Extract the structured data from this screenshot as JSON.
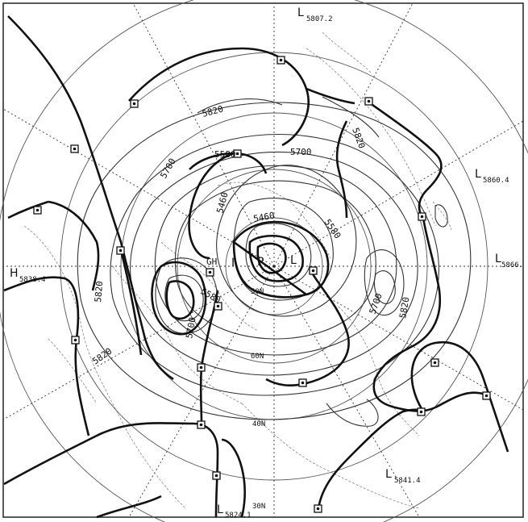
{
  "contour_labels": [
    "5820",
    "5700",
    "5580",
    "5460",
    "5580",
    "5700",
    "5820",
    "5700",
    "5820",
    "5820",
    "5700",
    "5580",
    "5460",
    "5820"
  ],
  "latitude_labels": [
    "60N",
    "50N",
    "40N",
    "30N"
  ],
  "pressure_centers": [
    {
      "letter": "L",
      "value": "5807.2"
    },
    {
      "letter": "L",
      "value": "5860.4"
    },
    {
      "letter": "L",
      "value": "5866."
    },
    {
      "letter": "H",
      "value": "5838.4"
    },
    {
      "letter": "L",
      "value": "5841.4"
    },
    {
      "letter": "L",
      "value": "5824.1"
    }
  ],
  "glyph_labels": [
    "GH",
    "P",
    "L",
    "I"
  ],
  "colors": {
    "background": "#ffffff",
    "contour": "#111111",
    "grid": "#333333"
  }
}
